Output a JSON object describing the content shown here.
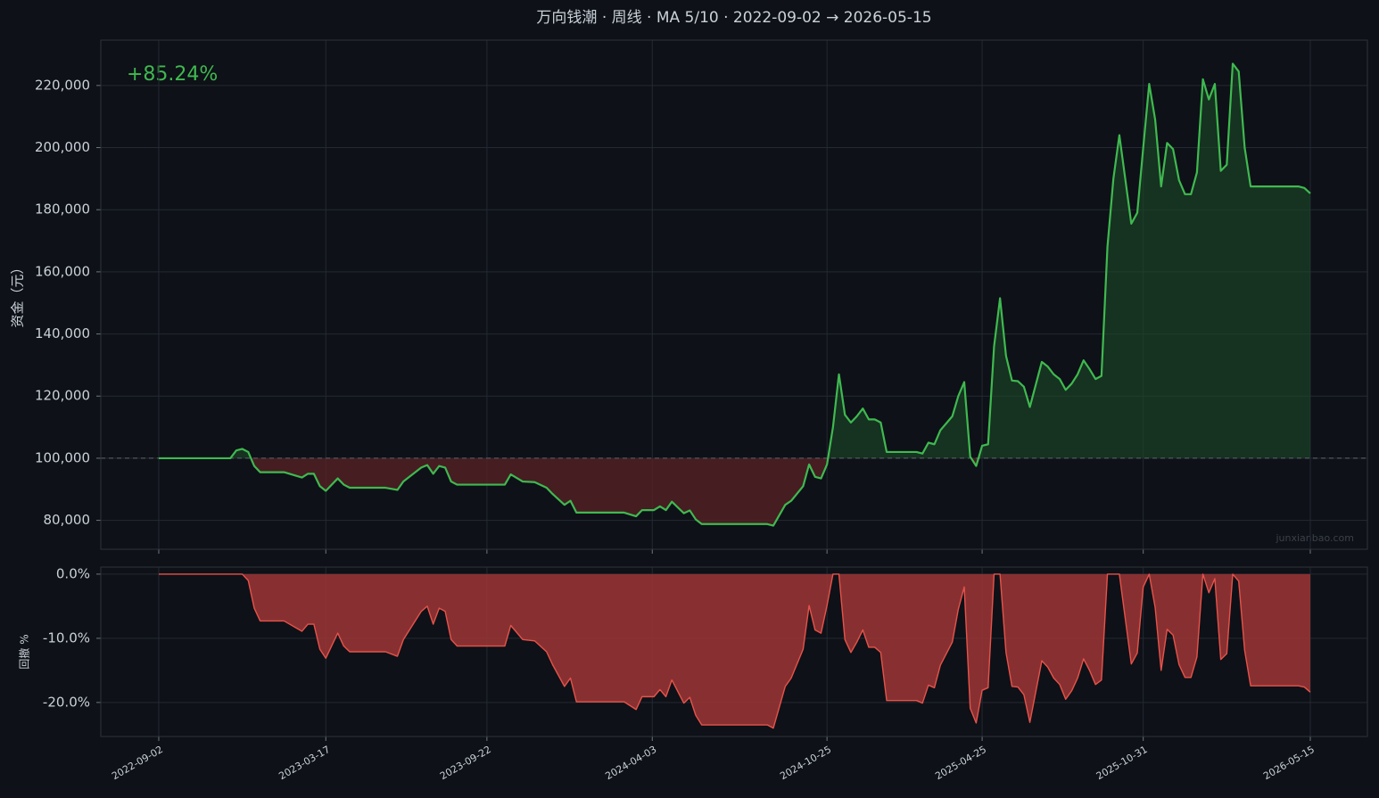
{
  "chart_data": [
    {
      "type": "line",
      "title": "万向钱潮 · 周线 · MA 5/10 · 2022-09-02 → 2026-05-15",
      "annotation": "+85.24%",
      "watermark": "junxianbao.com",
      "ylabel": "资金（元）",
      "x": [
        "2022-09-02",
        "2022-11-25",
        "2022-12-02",
        "2022-12-09",
        "2022-12-16",
        "2022-12-23",
        "2022-12-30",
        "2023-01-27",
        "2023-02-17",
        "2023-02-24",
        "2023-03-03",
        "2023-03-10",
        "2023-03-17",
        "2023-03-31",
        "2023-04-07",
        "2023-04-14",
        "2023-05-26",
        "2023-06-09",
        "2023-06-16",
        "2023-07-07",
        "2023-07-14",
        "2023-07-21",
        "2023-07-28",
        "2023-08-04",
        "2023-08-11",
        "2023-08-18",
        "2023-10-13",
        "2023-10-20",
        "2023-11-03",
        "2023-11-17",
        "2023-12-01",
        "2023-12-08",
        "2023-12-22",
        "2023-12-29",
        "2024-01-05",
        "2024-03-01",
        "2024-03-15",
        "2024-03-22",
        "2024-04-05",
        "2024-04-12",
        "2024-04-19",
        "2024-04-26",
        "2024-05-10",
        "2024-05-17",
        "2024-05-24",
        "2024-05-31",
        "2024-08-16",
        "2024-08-23",
        "2024-09-06",
        "2024-09-13",
        "2024-09-27",
        "2024-10-04",
        "2024-10-11",
        "2024-10-18",
        "2024-10-25",
        "2024-11-01",
        "2024-11-08",
        "2024-11-15",
        "2024-11-22",
        "2024-11-29",
        "2024-12-06",
        "2024-12-13",
        "2024-12-20",
        "2024-12-27",
        "2025-01-03",
        "2025-02-07",
        "2025-02-14",
        "2025-02-21",
        "2025-02-28",
        "2025-03-07",
        "2025-03-21",
        "2025-03-28",
        "2025-04-04",
        "2025-04-11",
        "2025-04-18",
        "2025-04-25",
        "2025-05-02",
        "2025-05-09",
        "2025-05-16",
        "2025-05-23",
        "2025-05-30",
        "2025-06-06",
        "2025-06-13",
        "2025-06-20",
        "2025-07-04",
        "2025-07-11",
        "2025-07-18",
        "2025-07-25",
        "2025-08-01",
        "2025-08-08",
        "2025-08-15",
        "2025-08-22",
        "2025-08-29",
        "2025-09-05",
        "2025-09-12",
        "2025-09-19",
        "2025-09-26",
        "2025-10-03",
        "2025-10-17",
        "2025-10-24",
        "2025-10-31",
        "2025-11-07",
        "2025-11-14",
        "2025-11-21",
        "2025-11-28",
        "2025-12-05",
        "2025-12-12",
        "2025-12-19",
        "2025-12-26",
        "2026-01-02",
        "2026-01-09",
        "2026-01-16",
        "2026-01-23",
        "2026-01-30",
        "2026-02-06",
        "2026-02-13",
        "2026-02-20",
        "2026-02-27",
        "2026-03-06",
        "2026-05-01",
        "2026-05-08",
        "2026-05-15"
      ],
      "series": [
        {
          "color": "#3fb950",
          "values": [
            100000,
            100000,
            102500,
            103000,
            102000,
            97500,
            95500,
            95500,
            93800,
            95000,
            95000,
            91000,
            89500,
            93500,
            91500,
            90500,
            90500,
            89800,
            92500,
            97000,
            97800,
            95000,
            97500,
            97000,
            92500,
            91500,
            91500,
            94800,
            92500,
            92300,
            90500,
            88500,
            85000,
            86300,
            82500,
            82500,
            81300,
            83300,
            83300,
            84500,
            83300,
            86000,
            82300,
            83200,
            80300,
            78800,
            78800,
            78300,
            85000,
            86300,
            91000,
            98000,
            94000,
            93500,
            98000,
            110000,
            127000,
            114000,
            111500,
            113500,
            116000,
            112500,
            112500,
            111500,
            102000,
            102000,
            101500,
            105000,
            104500,
            109000,
            113500,
            120000,
            124500,
            100500,
            97500,
            104000,
            104500,
            136000,
            151500,
            133000,
            125000,
            124800,
            123000,
            116500,
            131000,
            129500,
            127000,
            125500,
            122000,
            124000,
            127000,
            131500,
            128700,
            125500,
            126500,
            168000,
            190000,
            204000,
            175500,
            179000,
            200000,
            220500,
            209000,
            187500,
            201500,
            199500,
            189500,
            185000,
            185000,
            192000,
            222000,
            215500,
            220500,
            192500,
            194500,
            227000,
            224500,
            200000,
            187500,
            187500,
            187000,
            185240
          ]
        }
      ],
      "baseline": 100000,
      "fill_above": "#1c4a26",
      "fill_below": "#5a2226",
      "xlim": [
        "2022-06-26",
        "2026-07-21"
      ],
      "xticks": [
        "2022-09-02",
        "2023-03-17",
        "2023-09-22",
        "2024-04-03",
        "2024-10-25",
        "2025-04-25",
        "2025-10-31",
        "2026-05-15"
      ],
      "show_xtick_labels": false,
      "ylim": [
        70700,
        234600
      ],
      "yticks": [
        {
          "value": 80000,
          "label": "80,000"
        },
        {
          "value": 100000,
          "label": "100,000"
        },
        {
          "value": 120000,
          "label": "120,000"
        },
        {
          "value": 140000,
          "label": "140,000"
        },
        {
          "value": 160000,
          "label": "160,000"
        },
        {
          "value": 180000,
          "label": "180,000"
        },
        {
          "value": 200000,
          "label": "200,000"
        },
        {
          "value": 220000,
          "label": "220,000"
        }
      ],
      "grid": true
    },
    {
      "type": "area",
      "ylabel": "回撤 %",
      "x": [
        "2022-09-02",
        "2022-11-25",
        "2022-12-02",
        "2022-12-09",
        "2022-12-16",
        "2022-12-23",
        "2022-12-30",
        "2023-01-27",
        "2023-02-17",
        "2023-02-24",
        "2023-03-03",
        "2023-03-10",
        "2023-03-17",
        "2023-03-31",
        "2023-04-07",
        "2023-04-14",
        "2023-05-26",
        "2023-06-09",
        "2023-06-16",
        "2023-07-07",
        "2023-07-14",
        "2023-07-21",
        "2023-07-28",
        "2023-08-04",
        "2023-08-11",
        "2023-08-18",
        "2023-10-13",
        "2023-10-20",
        "2023-11-03",
        "2023-11-17",
        "2023-12-01",
        "2023-12-08",
        "2023-12-22",
        "2023-12-29",
        "2024-01-05",
        "2024-03-01",
        "2024-03-15",
        "2024-03-22",
        "2024-04-05",
        "2024-04-12",
        "2024-04-19",
        "2024-04-26",
        "2024-05-10",
        "2024-05-17",
        "2024-05-24",
        "2024-05-31",
        "2024-08-16",
        "2024-08-23",
        "2024-09-06",
        "2024-09-13",
        "2024-09-27",
        "2024-10-04",
        "2024-10-11",
        "2024-10-18",
        "2024-10-25",
        "2024-11-01",
        "2024-11-08",
        "2024-11-15",
        "2024-11-22",
        "2024-11-29",
        "2024-12-06",
        "2024-12-13",
        "2024-12-20",
        "2024-12-27",
        "2025-01-03",
        "2025-02-07",
        "2025-02-14",
        "2025-02-21",
        "2025-02-28",
        "2025-03-07",
        "2025-03-21",
        "2025-03-28",
        "2025-04-04",
        "2025-04-11",
        "2025-04-18",
        "2025-04-25",
        "2025-05-02",
        "2025-05-09",
        "2025-05-16",
        "2025-05-23",
        "2025-05-30",
        "2025-06-06",
        "2025-06-13",
        "2025-06-20",
        "2025-07-04",
        "2025-07-11",
        "2025-07-18",
        "2025-07-25",
        "2025-08-01",
        "2025-08-08",
        "2025-08-15",
        "2025-08-22",
        "2025-08-29",
        "2025-09-05",
        "2025-09-12",
        "2025-09-19",
        "2025-09-26",
        "2025-10-03",
        "2025-10-17",
        "2025-10-24",
        "2025-10-31",
        "2025-11-07",
        "2025-11-14",
        "2025-11-21",
        "2025-11-28",
        "2025-12-05",
        "2025-12-12",
        "2025-12-19",
        "2025-12-26",
        "2026-01-02",
        "2026-01-09",
        "2026-01-16",
        "2026-01-23",
        "2026-01-30",
        "2026-02-06",
        "2026-02-13",
        "2026-02-20",
        "2026-02-27",
        "2026-03-06",
        "2026-05-01",
        "2026-05-08",
        "2026-05-15"
      ],
      "series": [
        {
          "color": "#e5534b",
          "fill_color": "#963434",
          "values": [
            0,
            0,
            0,
            0,
            -1.0,
            -5.3,
            -7.3,
            -7.3,
            -8.9,
            -7.8,
            -7.8,
            -11.7,
            -13.1,
            -9.2,
            -11.2,
            -12.1,
            -12.1,
            -12.8,
            -10.2,
            -5.8,
            -5.0,
            -7.8,
            -5.3,
            -5.8,
            -10.2,
            -11.2,
            -11.2,
            -8.0,
            -10.2,
            -10.4,
            -12.1,
            -14.1,
            -17.5,
            -16.2,
            -19.9,
            -19.9,
            -21.1,
            -19.1,
            -19.1,
            -18.0,
            -19.1,
            -16.5,
            -20.1,
            -19.2,
            -22.0,
            -23.5,
            -23.5,
            -24.0,
            -17.5,
            -16.2,
            -11.7,
            -4.9,
            -8.7,
            -9.2,
            -4.9,
            0,
            0,
            -10.2,
            -12.2,
            -10.6,
            -8.7,
            -11.4,
            -11.4,
            -12.2,
            -19.7,
            -19.7,
            -20.1,
            -17.3,
            -17.7,
            -14.2,
            -10.6,
            -5.5,
            -2.0,
            -20.9,
            -23.2,
            -18.1,
            -17.7,
            0,
            0,
            -12.2,
            -17.5,
            -17.6,
            -18.8,
            -23.1,
            -13.5,
            -14.5,
            -16.2,
            -17.2,
            -19.5,
            -18.2,
            -16.2,
            -13.2,
            -15.0,
            -17.2,
            -16.5,
            0,
            0,
            0,
            -14.0,
            -12.3,
            -2.0,
            0,
            -5.2,
            -15.0,
            -8.6,
            -9.5,
            -14.1,
            -16.1,
            -16.1,
            -12.9,
            0,
            -2.9,
            -0.7,
            -13.3,
            -12.4,
            0,
            -1.1,
            -11.9,
            -17.4,
            -17.4,
            -17.6,
            -18.4
          ]
        }
      ],
      "xlim": [
        "2022-06-26",
        "2026-07-21"
      ],
      "xticks": [
        "2022-09-02",
        "2023-03-17",
        "2023-09-22",
        "2024-04-03",
        "2024-10-25",
        "2025-04-25",
        "2025-10-31",
        "2026-05-15"
      ],
      "show_xtick_labels": true,
      "ylim": [
        -25.3,
        1.1
      ],
      "yticks": [
        {
          "value": 0,
          "label": "0.0%"
        },
        {
          "value": -10,
          "label": "-10.0%"
        },
        {
          "value": -20,
          "label": "-20.0%"
        }
      ],
      "grid": true
    }
  ]
}
